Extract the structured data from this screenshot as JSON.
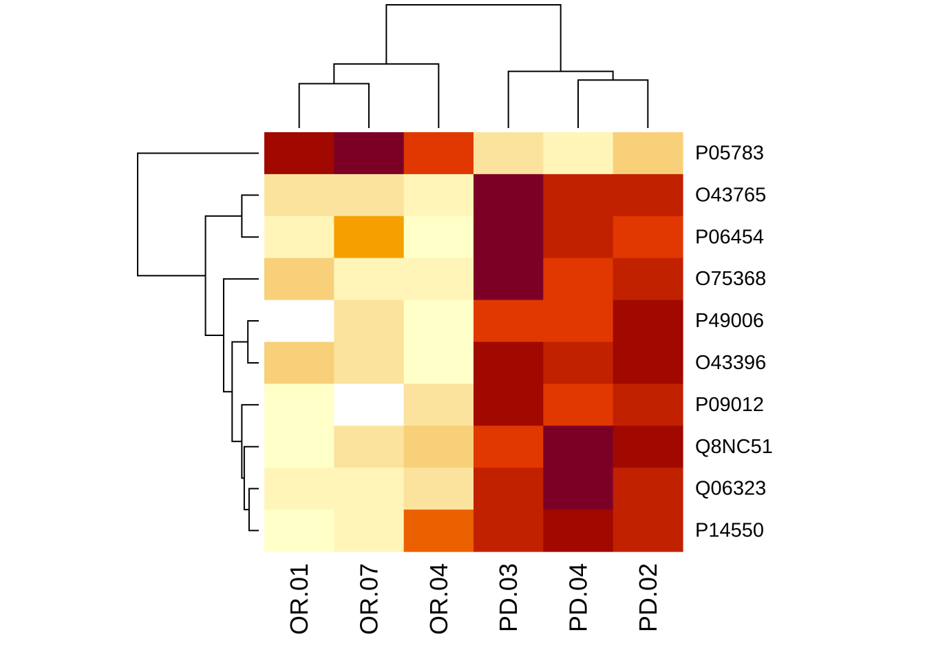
{
  "chart_data": {
    "type": "heatmap",
    "title": "",
    "xlabel": "",
    "ylabel": "",
    "columns": [
      "OR.01",
      "OR.07",
      "OR.04",
      "PD.03",
      "PD.04",
      "PD.02"
    ],
    "rows": [
      "P05783",
      "O43765",
      "P06454",
      "O75368",
      "P49006",
      "O43396",
      "P09012",
      "Q8NC51",
      "Q06323",
      "P14550"
    ],
    "values": [
      [
        9,
        10,
        7,
        3,
        2,
        4
      ],
      [
        3,
        3,
        2,
        10,
        8,
        8
      ],
      [
        2,
        5,
        1,
        10,
        8,
        7
      ],
      [
        4,
        2,
        2,
        10,
        7,
        8
      ],
      [
        0,
        3,
        1,
        7,
        7,
        9
      ],
      [
        4,
        3,
        1,
        9,
        8,
        9
      ],
      [
        1,
        0,
        3,
        9,
        7,
        8
      ],
      [
        1,
        3,
        4,
        7,
        10,
        9
      ],
      [
        2,
        2,
        3,
        8,
        10,
        8
      ],
      [
        1,
        2,
        6,
        8,
        9,
        8
      ]
    ],
    "color_scale": [
      "#FFFFFF",
      "#FFFFC8",
      "#FFF5B9",
      "#FBE39D",
      "#F7D079",
      "#F7B93B",
      "#F5A000",
      "#EB6100",
      "#E03800",
      "#C22100",
      "#A00800",
      "#7C0026"
    ],
    "col_dendrogram": {
      "order": [
        "OR.01",
        "OR.07",
        "OR.04",
        "PD.03",
        "PD.04",
        "PD.02"
      ],
      "merges": [
        {
          "left": "OR.01",
          "right": "OR.07",
          "height": 0.36
        },
        {
          "left": "PD.04",
          "right": "PD.02",
          "height": 0.39
        },
        {
          "left": "m0",
          "right": "OR.04",
          "height": 0.52
        },
        {
          "left": "PD.03",
          "right": "m1",
          "height": 0.46
        },
        {
          "left": "m2",
          "right": "m3",
          "height": 1.0
        }
      ]
    },
    "row_dendrogram": {
      "order": [
        "P05783",
        "O43765",
        "P06454",
        "O75368",
        "P49006",
        "O43396",
        "P09012",
        "Q8NC51",
        "Q06323",
        "P14550"
      ],
      "merges": [
        {
          "left": "O43765",
          "right": "P06454",
          "height": 0.14
        },
        {
          "left": "Q06323",
          "right": "P14550",
          "height": 0.08
        },
        {
          "left": "P49006",
          "right": "O43396",
          "height": 0.09
        },
        {
          "left": "Q8NC51",
          "right": "m1",
          "height": 0.12
        },
        {
          "left": "P09012",
          "right": "m3",
          "height": 0.14
        },
        {
          "left": "m2",
          "right": "m4",
          "height": 0.22
        },
        {
          "left": "O75368",
          "right": "m5",
          "height": 0.29
        },
        {
          "left": "m0",
          "right": "m6",
          "height": 0.44
        },
        {
          "left": "P05783",
          "right": "m7",
          "height": 1.0
        }
      ]
    }
  }
}
